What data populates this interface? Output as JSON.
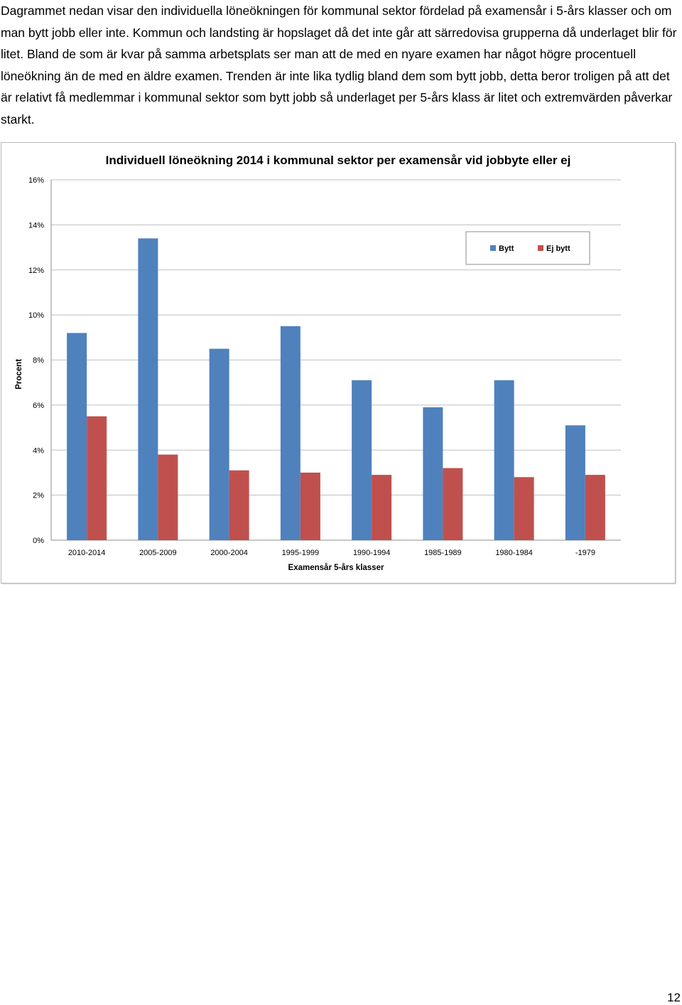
{
  "document": {
    "paragraph": "Dagrammet nedan visar den individuella löneökningen för kommunal sektor fördelad på examensår i 5-års klasser och om man bytt jobb eller inte. Kommun och landsting är hopslaget då det inte går att särredovisa grupperna då underlaget blir för litet. Bland de som är kvar på samma arbetsplats ser man att de med en nyare examen har något högre procentuell löneökning än de med en äldre examen. Trenden är inte lika tydlig bland dem som bytt jobb, detta beror troligen på att det är relativt få medlemmar i kommunal sektor som bytt jobb så underlaget per 5-års klass är litet och extremvärden påverkar starkt.",
    "page_number": "12"
  },
  "chart_data": {
    "type": "bar",
    "title": "Individuell löneökning 2014 i kommunal sektor per examensår vid jobbyte eller ej",
    "xlabel": "Examensår 5-års klasser",
    "ylabel": "Procent",
    "ylim": [
      0,
      16
    ],
    "yticks": [
      0,
      2,
      4,
      6,
      8,
      10,
      12,
      14,
      16
    ],
    "ytick_labels": [
      "0%",
      "2%",
      "4%",
      "6%",
      "8%",
      "10%",
      "12%",
      "14%",
      "16%"
    ],
    "categories": [
      "2010-2014",
      "2005-2009",
      "2000-2004",
      "1995-1999",
      "1990-1994",
      "1985-1989",
      "1980-1984",
      "-1979"
    ],
    "series": [
      {
        "name": "Bytt",
        "color": "#4f81bd",
        "values": [
          9.2,
          13.4,
          8.5,
          9.5,
          7.1,
          5.9,
          7.1,
          5.1
        ]
      },
      {
        "name": "Ej bytt",
        "color": "#c0504d",
        "values": [
          5.5,
          3.8,
          3.1,
          3.0,
          2.9,
          3.2,
          2.8,
          2.9
        ]
      }
    ],
    "grid": true,
    "legend_position": "top-right"
  }
}
